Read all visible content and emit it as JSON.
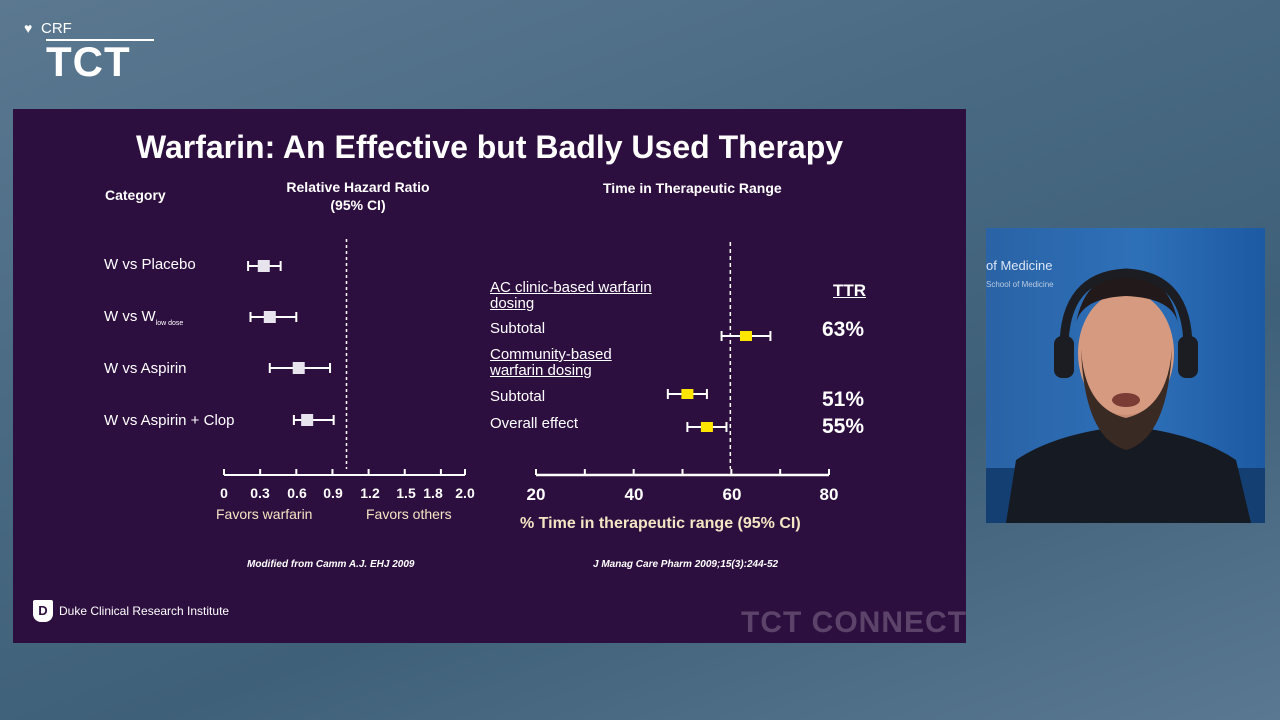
{
  "logo": {
    "crf": "CRF",
    "tct": "TCT"
  },
  "slide": {
    "title": "Warfarin: An Effective but Badly Used Therapy",
    "left": {
      "category_header": "Category",
      "hr_header_line1": "Relative Hazard Ratio",
      "hr_header_line2": "(95% CI)",
      "rows": [
        {
          "label": "W vs Placebo",
          "point": 0.33,
          "lo": 0.2,
          "hi": 0.47
        },
        {
          "label_main": "W vs W",
          "label_sub": "low dose",
          "point": 0.38,
          "lo": 0.22,
          "hi": 0.6
        },
        {
          "label": "W vs Aspirin",
          "point": 0.62,
          "lo": 0.38,
          "hi": 0.88
        },
        {
          "label": "W vs Aspirin + Clop",
          "point": 0.69,
          "lo": 0.58,
          "hi": 0.91
        }
      ],
      "ticks": [
        "0",
        "0.3",
        "0.6",
        "0.9",
        "1.2",
        "1.5",
        "1.8",
        "2.0"
      ],
      "favors_left": "Favors warfarin",
      "favors_right": "Favors others",
      "source": "Modified from Camm A.J. EHJ 2009",
      "ref_value": 1.0
    },
    "right": {
      "header": "Time in Therapeutic Range",
      "ttr_header": "TTR",
      "group1": "AC clinic-based warfarin dosing",
      "group2": "Community-based warfarin dosing",
      "rows": [
        {
          "label": "Subtotal",
          "pct": "63%",
          "point": 63,
          "lo": 58,
          "hi": 68
        },
        {
          "label": "Subtotal",
          "pct": "51%",
          "point": 51,
          "lo": 47,
          "hi": 55
        },
        {
          "label": "Overall effect",
          "pct": "55%",
          "point": 55,
          "lo": 51,
          "hi": 59
        }
      ],
      "ticks": [
        "20",
        "40",
        "60",
        "80"
      ],
      "xlabel": "% Time in therapeutic range (95% CI)",
      "source": "J Manag Care Pharm 2009;15(3):244-52",
      "ref_value": 60
    },
    "footer_logo": "Duke Clinical Research Institute",
    "watermark": "TCT CONNECT"
  },
  "webcam": {
    "wall_text": "of Medicine",
    "wall_sub": "School of Medicine"
  },
  "colors": {
    "slide_bg": "#2d0f3f",
    "marker_yellow": "#ffe600",
    "marker_white": "#ffffff"
  },
  "chart_data": [
    {
      "type": "scatter",
      "title": "Relative Hazard Ratio (95% CI)",
      "categories": [
        "W vs Placebo",
        "W vs W low dose",
        "W vs Aspirin",
        "W vs Aspirin + Clop"
      ],
      "series": [
        {
          "values": [
            0.33,
            0.38,
            0.62,
            0.69
          ]
        }
      ],
      "xlim": [
        0,
        2.0
      ],
      "xlabel": ""
    },
    {
      "type": "scatter",
      "title": "Time in Therapeutic Range",
      "categories": [
        "AC clinic-based Subtotal",
        "Community-based Subtotal",
        "Overall effect"
      ],
      "series": [
        {
          "values": [
            63,
            51,
            55
          ]
        }
      ],
      "xlim": [
        20,
        80
      ],
      "xlabel": "% Time in therapeutic range (95% CI)"
    }
  ]
}
